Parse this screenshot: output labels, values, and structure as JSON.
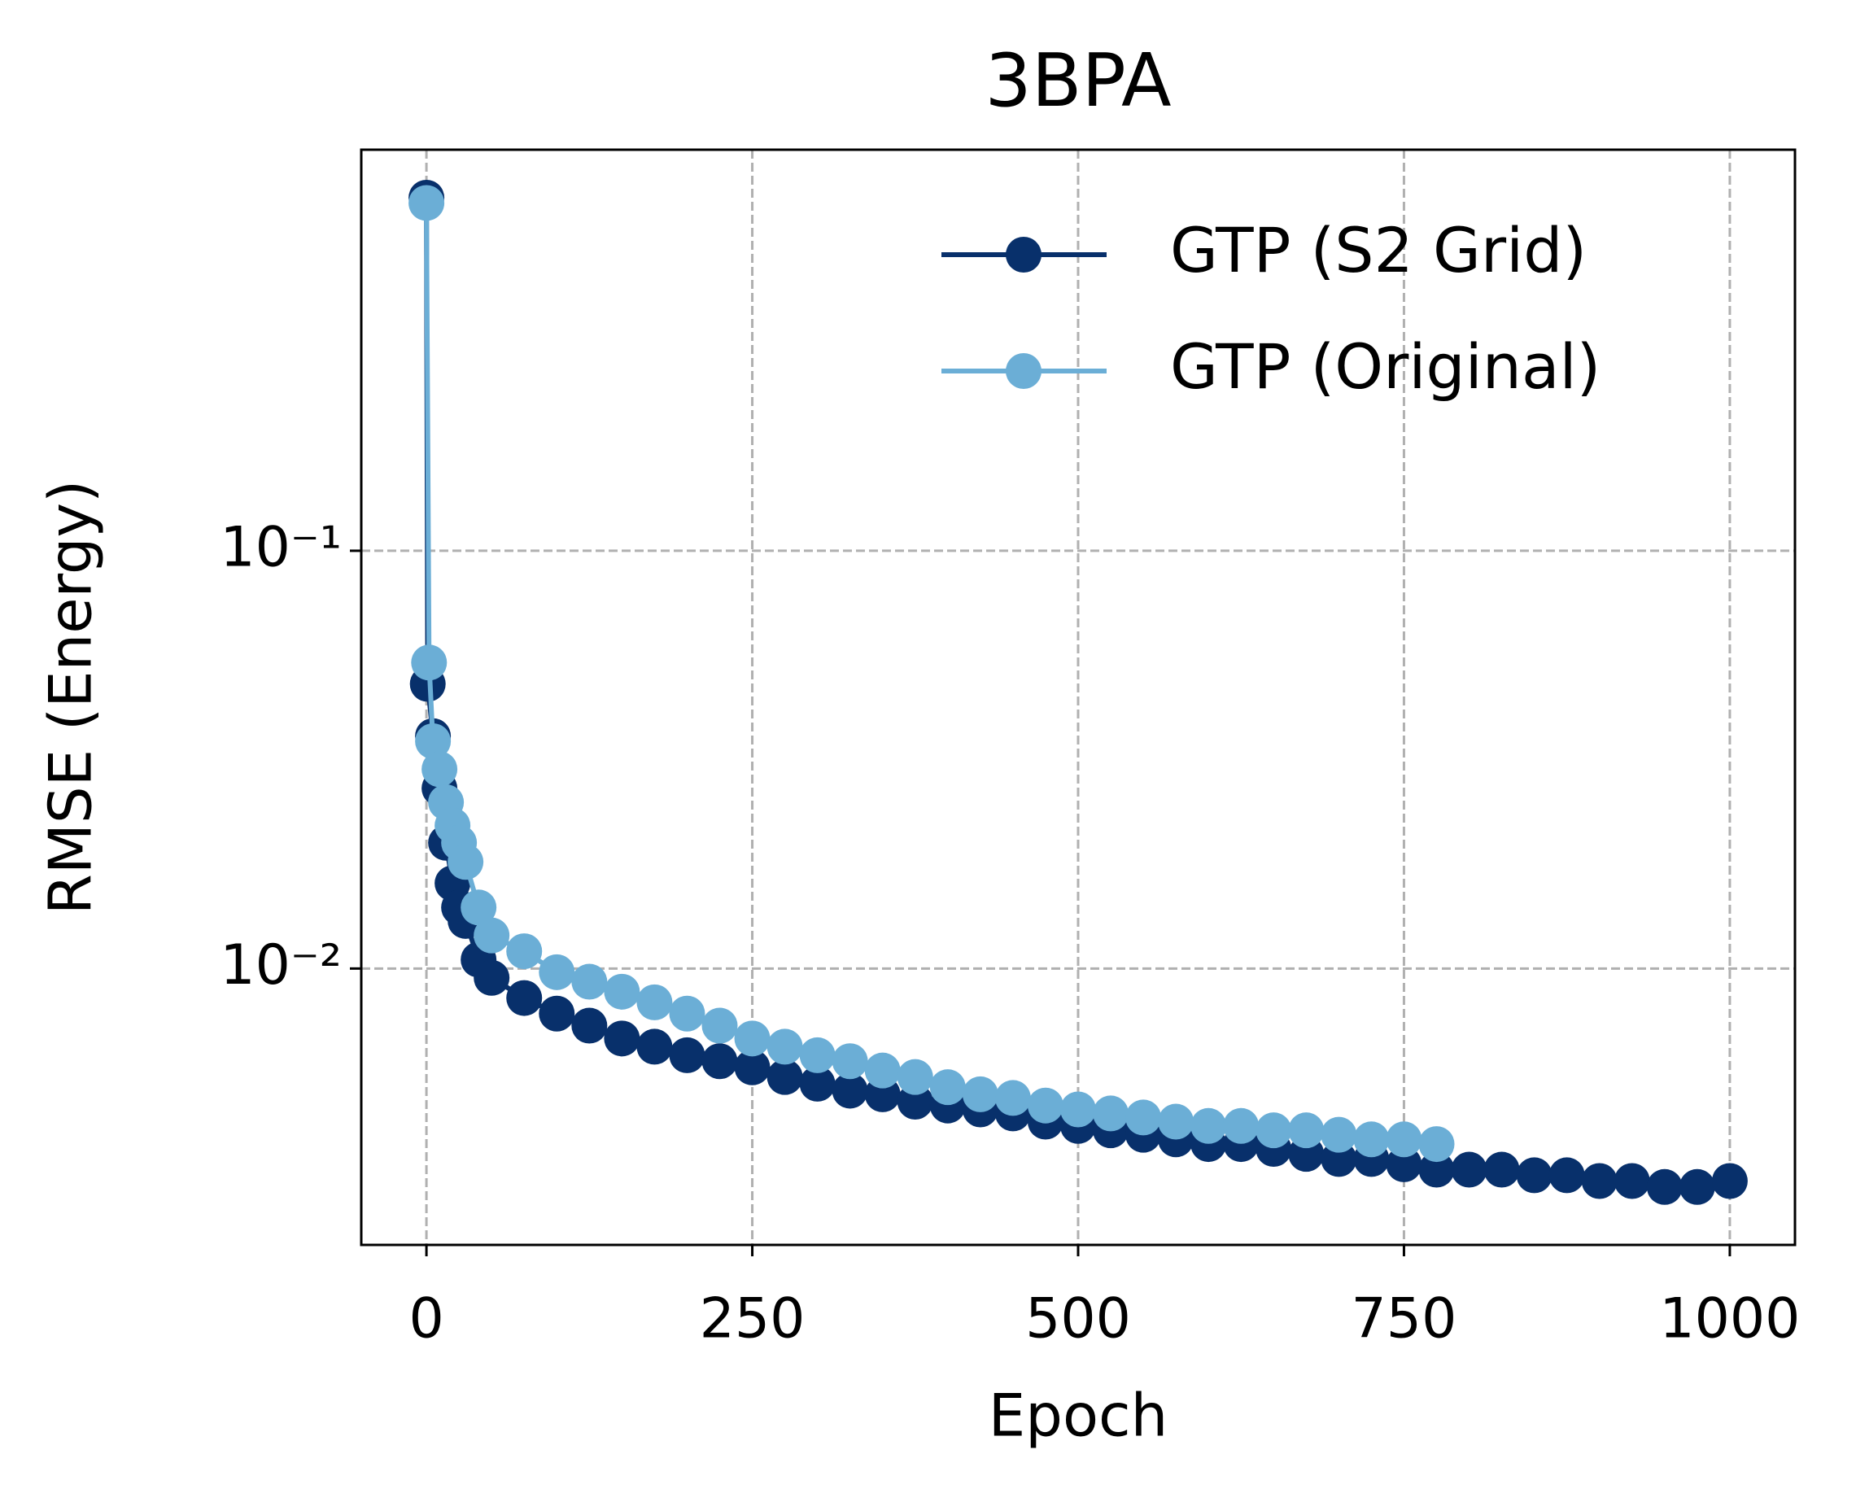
{
  "chart_data": {
    "type": "line",
    "title": "3BPA",
    "xlabel": "Epoch",
    "ylabel": "RMSE (Energy)",
    "xlim": [
      -50,
      1050
    ],
    "xticks": [
      0,
      250,
      500,
      750,
      1000
    ],
    "ylim": [
      0.00218,
      0.912
    ],
    "yscale": "log",
    "yticks": [
      {
        "value": 0.01,
        "label": "10⁻²"
      },
      {
        "value": 0.1,
        "label": "10⁻¹"
      }
    ],
    "grid": true,
    "legend": "upper right",
    "series": [
      {
        "name": "GTP (S2 Grid)",
        "color": "#08306b",
        "x": [
          0,
          1,
          5,
          10,
          15,
          20,
          25,
          30,
          40,
          50,
          75,
          100,
          125,
          150,
          175,
          200,
          225,
          250,
          275,
          300,
          325,
          350,
          375,
          400,
          425,
          450,
          475,
          500,
          525,
          550,
          575,
          600,
          625,
          650,
          675,
          700,
          725,
          750,
          775,
          800,
          825,
          850,
          875,
          900,
          925,
          950,
          975,
          1000
        ],
        "values": [
          0.7,
          0.048,
          0.036,
          0.027,
          0.02,
          0.016,
          0.014,
          0.013,
          0.0105,
          0.0095,
          0.0085,
          0.0078,
          0.0073,
          0.0068,
          0.0065,
          0.0062,
          0.006,
          0.0058,
          0.0055,
          0.0053,
          0.0051,
          0.005,
          0.0048,
          0.0047,
          0.0046,
          0.0045,
          0.0043,
          0.0042,
          0.0041,
          0.004,
          0.0039,
          0.0038,
          0.0038,
          0.0037,
          0.0036,
          0.0035,
          0.0035,
          0.0034,
          0.0033,
          0.0033,
          0.0033,
          0.0032,
          0.0032,
          0.0031,
          0.0031,
          0.003,
          0.003,
          0.0031
        ]
      },
      {
        "name": "GTP (Original)",
        "color": "#6baed6",
        "x": [
          0,
          2,
          5,
          10,
          15,
          20,
          25,
          30,
          40,
          50,
          75,
          100,
          125,
          150,
          175,
          200,
          225,
          250,
          275,
          300,
          325,
          350,
          375,
          400,
          425,
          450,
          475,
          500,
          525,
          550,
          575,
          600,
          625,
          650,
          675,
          700,
          725,
          750,
          775
        ],
        "values": [
          0.68,
          0.054,
          0.035,
          0.03,
          0.025,
          0.022,
          0.02,
          0.018,
          0.014,
          0.012,
          0.011,
          0.0098,
          0.0093,
          0.0088,
          0.0083,
          0.0078,
          0.0073,
          0.0068,
          0.0065,
          0.0062,
          0.006,
          0.0057,
          0.0055,
          0.0052,
          0.005,
          0.0049,
          0.0047,
          0.0046,
          0.0045,
          0.0044,
          0.0043,
          0.0042,
          0.0042,
          0.0041,
          0.0041,
          0.004,
          0.0039,
          0.0039,
          0.0038
        ]
      }
    ]
  }
}
